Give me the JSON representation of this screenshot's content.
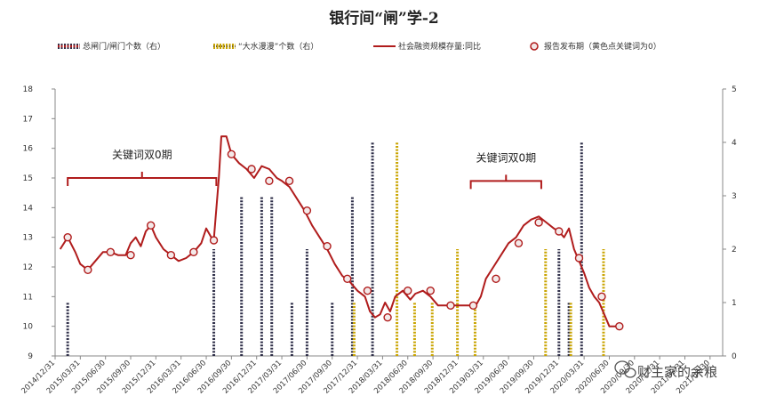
{
  "chart_data": {
    "type": "line",
    "title": "银行间“闸”学-2",
    "legend": [
      {
        "name": "总闸门/闸门个数（右）",
        "style": "dashed-bar",
        "color": "#2e2e48"
      },
      {
        "name": "“大水漫漫”个数（右）",
        "style": "dashed-bar",
        "color": "#c9a400"
      },
      {
        "name": "社会融资规模存量:同比",
        "style": "line",
        "color": "#b01c1c"
      },
      {
        "name": "报告发布期（黄色点关键词为0）",
        "style": "marker",
        "color": "#b01c1c"
      }
    ],
    "y_left": {
      "min": 9,
      "max": 18,
      "ticks": [
        "9",
        "10",
        "11",
        "12",
        "13",
        "14",
        "15",
        "16",
        "17",
        "18"
      ]
    },
    "y_right": {
      "min": 0,
      "max": 5,
      "ticks": [
        "0",
        "1",
        "2",
        "3",
        "4",
        "5"
      ]
    },
    "x_ticks": [
      "2014/12/31",
      "2015/03/31",
      "2015/06/30",
      "2015/09/30",
      "2015/12/31",
      "2016/03/31",
      "2016/06/30",
      "2016/09/30",
      "2016/12/31",
      "2017/03/31",
      "2017/06/30",
      "2017/09/30",
      "2017/12/31",
      "2018/03/31",
      "2018/06/30",
      "2018/09/30",
      "2018/12/31",
      "2019/03/31",
      "2019/06/30",
      "2019/09/30",
      "2019/12/31",
      "2020/03/31",
      "2020/06/30",
      "2020/09/30",
      "2020/12/31",
      "2021/03/31",
      "2021/06/30"
    ],
    "line_series": {
      "name": "社会融资规模存量:同比",
      "points": [
        [
          0.2,
          12.6
        ],
        [
          0.5,
          13.0
        ],
        [
          0.8,
          12.5
        ],
        [
          1.0,
          12.1
        ],
        [
          1.3,
          11.9
        ],
        [
          1.6,
          12.2
        ],
        [
          1.9,
          12.5
        ],
        [
          2.2,
          12.5
        ],
        [
          2.5,
          12.4
        ],
        [
          2.8,
          12.4
        ],
        [
          3.0,
          12.8
        ],
        [
          3.2,
          13.0
        ],
        [
          3.4,
          12.7
        ],
        [
          3.6,
          13.2
        ],
        [
          3.8,
          13.4
        ],
        [
          4.0,
          13.0
        ],
        [
          4.3,
          12.6
        ],
        [
          4.6,
          12.4
        ],
        [
          4.9,
          12.2
        ],
        [
          5.2,
          12.3
        ],
        [
          5.5,
          12.5
        ],
        [
          5.8,
          12.8
        ],
        [
          6.0,
          13.3
        ],
        [
          6.2,
          13.0
        ],
        [
          6.3,
          12.9
        ],
        [
          6.5,
          15.0
        ],
        [
          6.6,
          16.4
        ],
        [
          6.8,
          16.4
        ],
        [
          7.0,
          15.8
        ],
        [
          7.3,
          15.5
        ],
        [
          7.6,
          15.3
        ],
        [
          7.9,
          15.0
        ],
        [
          8.2,
          15.4
        ],
        [
          8.5,
          15.3
        ],
        [
          8.8,
          15.0
        ],
        [
          9.0,
          14.9
        ],
        [
          9.3,
          14.7
        ],
        [
          9.6,
          14.3
        ],
        [
          9.9,
          13.9
        ],
        [
          10.2,
          13.4
        ],
        [
          10.5,
          13.0
        ],
        [
          10.8,
          12.6
        ],
        [
          11.1,
          12.1
        ],
        [
          11.4,
          11.7
        ],
        [
          11.7,
          11.5
        ],
        [
          12.0,
          11.2
        ],
        [
          12.3,
          11.0
        ],
        [
          12.5,
          10.5
        ],
        [
          12.7,
          10.3
        ],
        [
          12.9,
          10.4
        ],
        [
          13.1,
          10.8
        ],
        [
          13.3,
          10.5
        ],
        [
          13.5,
          11.0
        ],
        [
          13.8,
          11.2
        ],
        [
          14.1,
          10.9
        ],
        [
          14.3,
          11.1
        ],
        [
          14.6,
          11.2
        ],
        [
          14.9,
          11.0
        ],
        [
          15.2,
          10.7
        ],
        [
          15.5,
          10.7
        ],
        [
          15.8,
          10.7
        ],
        [
          16.1,
          10.7
        ],
        [
          16.4,
          10.7
        ],
        [
          16.7,
          10.7
        ],
        [
          16.9,
          11.0
        ],
        [
          17.1,
          11.6
        ],
        [
          17.4,
          12.0
        ],
        [
          17.7,
          12.4
        ],
        [
          18.0,
          12.8
        ],
        [
          18.3,
          13.0
        ],
        [
          18.6,
          13.4
        ],
        [
          18.9,
          13.6
        ],
        [
          19.2,
          13.7
        ],
        [
          19.5,
          13.5
        ],
        [
          19.8,
          13.3
        ],
        [
          20.0,
          13.2
        ],
        [
          20.2,
          13.0
        ],
        [
          20.4,
          13.3
        ],
        [
          20.6,
          12.6
        ],
        [
          20.8,
          12.2
        ],
        [
          21.0,
          11.8
        ],
        [
          21.2,
          11.3
        ],
        [
          21.4,
          11.0
        ],
        [
          21.6,
          10.8
        ],
        [
          21.8,
          10.4
        ],
        [
          22.0,
          10.0
        ],
        [
          22.4,
          10.0
        ]
      ]
    },
    "markers": [
      {
        "x": 0.5,
        "y": 13.0
      },
      {
        "x": 1.3,
        "y": 11.9
      },
      {
        "x": 2.2,
        "y": 12.5
      },
      {
        "x": 3.0,
        "y": 12.4
      },
      {
        "x": 3.8,
        "y": 13.4
      },
      {
        "x": 4.6,
        "y": 12.4
      },
      {
        "x": 5.5,
        "y": 12.5
      },
      {
        "x": 6.3,
        "y": 12.9
      },
      {
        "x": 7.0,
        "y": 15.8
      },
      {
        "x": 7.8,
        "y": 15.3
      },
      {
        "x": 8.5,
        "y": 14.9
      },
      {
        "x": 9.3,
        "y": 14.9
      },
      {
        "x": 10.0,
        "y": 13.9
      },
      {
        "x": 10.8,
        "y": 12.7
      },
      {
        "x": 11.6,
        "y": 11.6
      },
      {
        "x": 12.4,
        "y": 11.2
      },
      {
        "x": 13.2,
        "y": 10.3
      },
      {
        "x": 14.0,
        "y": 11.2
      },
      {
        "x": 14.9,
        "y": 11.2
      },
      {
        "x": 15.7,
        "y": 10.7
      },
      {
        "x": 16.6,
        "y": 10.7
      },
      {
        "x": 17.5,
        "y": 11.6
      },
      {
        "x": 18.4,
        "y": 12.8
      },
      {
        "x": 19.2,
        "y": 13.5
      },
      {
        "x": 20.0,
        "y": 13.2
      },
      {
        "x": 20.8,
        "y": 12.3
      },
      {
        "x": 21.7,
        "y": 11.0
      },
      {
        "x": 22.4,
        "y": 10.0
      }
    ],
    "bars_dark": [
      {
        "x": 0.5,
        "value": 1
      },
      {
        "x": 6.3,
        "value": 2
      },
      {
        "x": 7.4,
        "value": 3
      },
      {
        "x": 8.2,
        "value": 3
      },
      {
        "x": 8.6,
        "value": 3
      },
      {
        "x": 9.4,
        "value": 1
      },
      {
        "x": 10.0,
        "value": 2
      },
      {
        "x": 11.0,
        "value": 1
      },
      {
        "x": 11.8,
        "value": 3
      },
      {
        "x": 12.6,
        "value": 4
      },
      {
        "x": 20.0,
        "value": 2
      },
      {
        "x": 20.4,
        "value": 1
      },
      {
        "x": 20.9,
        "value": 4
      }
    ],
    "bars_gold": [
      {
        "x": 11.8,
        "value": 1
      },
      {
        "x": 13.5,
        "value": 4
      },
      {
        "x": 14.2,
        "value": 1
      },
      {
        "x": 14.9,
        "value": 1
      },
      {
        "x": 15.9,
        "value": 2
      },
      {
        "x": 16.6,
        "value": 1
      },
      {
        "x": 19.4,
        "value": 2
      },
      {
        "x": 20.4,
        "value": 1
      },
      {
        "x": 21.7,
        "value": 2
      }
    ],
    "annotations": [
      {
        "text": "关键词双0期",
        "x_start": 0.5,
        "x_end": 6.4,
        "y": 15.0
      },
      {
        "text": "关键词双0期",
        "x_start": 16.5,
        "x_end": 19.3,
        "y": 14.9
      }
    ]
  },
  "watermark": "财主家的余粮",
  "watermark_icon": "wechat-icon"
}
